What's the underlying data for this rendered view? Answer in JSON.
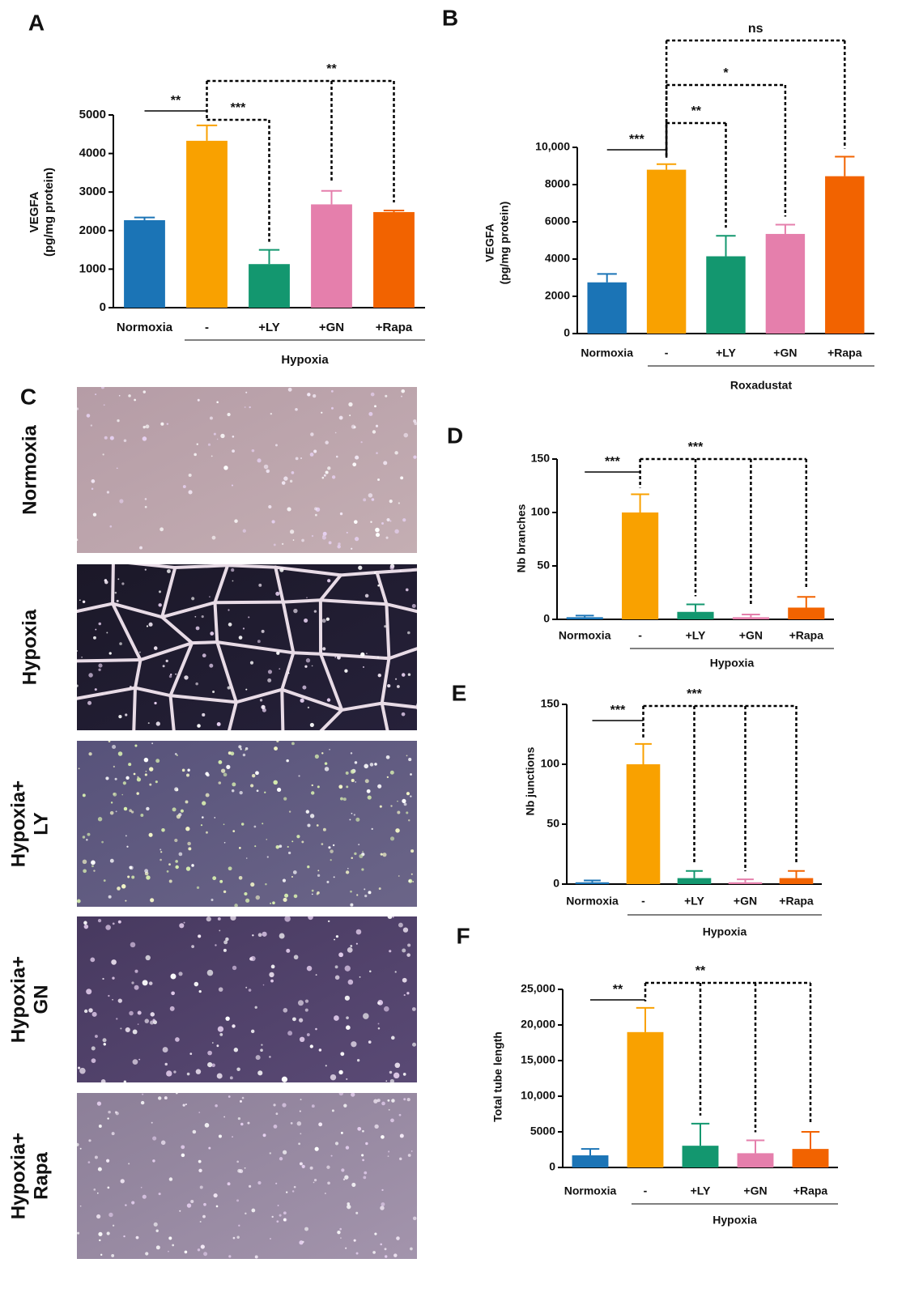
{
  "chart_data": [
    {
      "type": "bar",
      "panel": "A",
      "ylabel": [
        "VEGFA",
        "(pg/mg protein)"
      ],
      "categories": [
        "Normoxia",
        "-",
        "+LY",
        "+GN",
        "+Rapa"
      ],
      "group": "Hypoxia",
      "values": [
        2270,
        4330,
        1130,
        2680,
        2480
      ],
      "errors": [
        70,
        400,
        370,
        350,
        40
      ],
      "colors": [
        "#1b74b6",
        "#f9a100",
        "#13976f",
        "#e57fac",
        "#f26300"
      ],
      "ylim": [
        0,
        5000
      ],
      "yticks": [
        0,
        1000,
        2000,
        3000,
        4000,
        5000
      ],
      "annotations": [
        {
          "text": "**",
          "ref": 1,
          "targets": [
            0
          ],
          "dashed": false
        },
        {
          "text": "***",
          "ref": 1,
          "targets": [
            2
          ],
          "dashed": true
        },
        {
          "text": "**",
          "ref": 1,
          "targets": [
            3,
            4
          ],
          "dashed": true
        }
      ]
    },
    {
      "type": "bar",
      "panel": "B",
      "ylabel": [
        "VEGFA",
        "(pg/mg protein)"
      ],
      "categories": [
        "Normoxia",
        "-",
        "+LY",
        "+GN",
        "+Rapa"
      ],
      "group": "Roxadustat",
      "values": [
        2750,
        8800,
        4150,
        5350,
        8450
      ],
      "errors": [
        450,
        300,
        1100,
        500,
        1050
      ],
      "colors": [
        "#1b74b6",
        "#f9a100",
        "#13976f",
        "#e57fac",
        "#f26300"
      ],
      "ylim": [
        0,
        10000
      ],
      "yticks": [
        0,
        2000,
        4000,
        6000,
        8000,
        {
          "value": 10000,
          "label": "10,000"
        }
      ],
      "annotations": [
        {
          "text": "***",
          "ref": 1,
          "targets": [
            0
          ],
          "dashed": false
        },
        {
          "text": "**",
          "ref": 1,
          "targets": [
            2
          ],
          "dashed": true
        },
        {
          "text": "*",
          "ref": 1,
          "targets": [
            3
          ],
          "dashed": true
        },
        {
          "text": "ns",
          "ref": 1,
          "targets": [
            4
          ],
          "dashed": true
        }
      ]
    },
    {
      "type": "bar",
      "panel": "D",
      "ylabel": [
        "Nb branches"
      ],
      "categories": [
        "Normoxia",
        "-",
        "+LY",
        "+GN",
        "+Rapa"
      ],
      "group": "Hypoxia",
      "values": [
        2,
        100,
        7,
        2,
        11
      ],
      "errors": [
        1.5,
        17,
        7,
        2.5,
        10
      ],
      "colors": [
        "#1b74b6",
        "#f9a100",
        "#13976f",
        "#e57fac",
        "#f26300"
      ],
      "ylim": [
        0,
        150
      ],
      "yticks": [
        0,
        50,
        100,
        150
      ],
      "annotations": [
        {
          "text": "***",
          "ref": 1,
          "targets": [
            0
          ],
          "dashed": false
        },
        {
          "text": "***",
          "ref": 1,
          "targets": [
            2,
            3,
            4
          ],
          "dashed": true
        }
      ]
    },
    {
      "type": "bar",
      "panel": "E",
      "ylabel": [
        "Nb junctions"
      ],
      "categories": [
        "Normoxia",
        "-",
        "+LY",
        "+GN",
        "+Rapa"
      ],
      "group": "Hypoxia",
      "values": [
        1.5,
        100,
        5,
        1.5,
        5
      ],
      "errors": [
        1.5,
        17,
        6,
        2.5,
        6
      ],
      "colors": [
        "#1b74b6",
        "#f9a100",
        "#13976f",
        "#e57fac",
        "#f26300"
      ],
      "ylim": [
        0,
        150
      ],
      "yticks": [
        0,
        50,
        100,
        150
      ],
      "annotations": [
        {
          "text": "***",
          "ref": 1,
          "targets": [
            0
          ],
          "dashed": false
        },
        {
          "text": "***",
          "ref": 1,
          "targets": [
            2,
            3,
            4
          ],
          "dashed": true
        }
      ]
    },
    {
      "type": "bar",
      "panel": "F",
      "ylabel": [
        "Total tube length"
      ],
      "categories": [
        "Normoxia",
        "-",
        "+LY",
        "+GN",
        "+Rapa"
      ],
      "group": "Hypoxia",
      "values": [
        1700,
        19000,
        3050,
        2000,
        2600
      ],
      "errors": [
        900,
        3400,
        3100,
        1800,
        2400
      ],
      "colors": [
        "#1b74b6",
        "#f9a100",
        "#13976f",
        "#e57fac",
        "#f26300"
      ],
      "ylim": [
        0,
        25000
      ],
      "yticks": [
        0,
        5000,
        {
          "value": 10000,
          "label": "10,000"
        },
        {
          "value": 15000,
          "label": "15,000"
        },
        {
          "value": 20000,
          "label": "20,000"
        },
        {
          "value": 25000,
          "label": "25,000"
        }
      ],
      "annotations": [
        {
          "text": "**",
          "ref": 1,
          "targets": [
            0
          ],
          "dashed": false
        },
        {
          "text": "**",
          "ref": 1,
          "targets": [
            2,
            3,
            4
          ],
          "dashed": true
        }
      ]
    }
  ],
  "panel_c": {
    "panel": "C",
    "images": [
      [
        "Normoxia"
      ],
      [
        "Hypoxia"
      ],
      [
        "Hypoxia+",
        "LY"
      ],
      [
        "Hypoxia+",
        "GN"
      ],
      [
        "Hypoxia+",
        "Rapa"
      ]
    ]
  }
}
